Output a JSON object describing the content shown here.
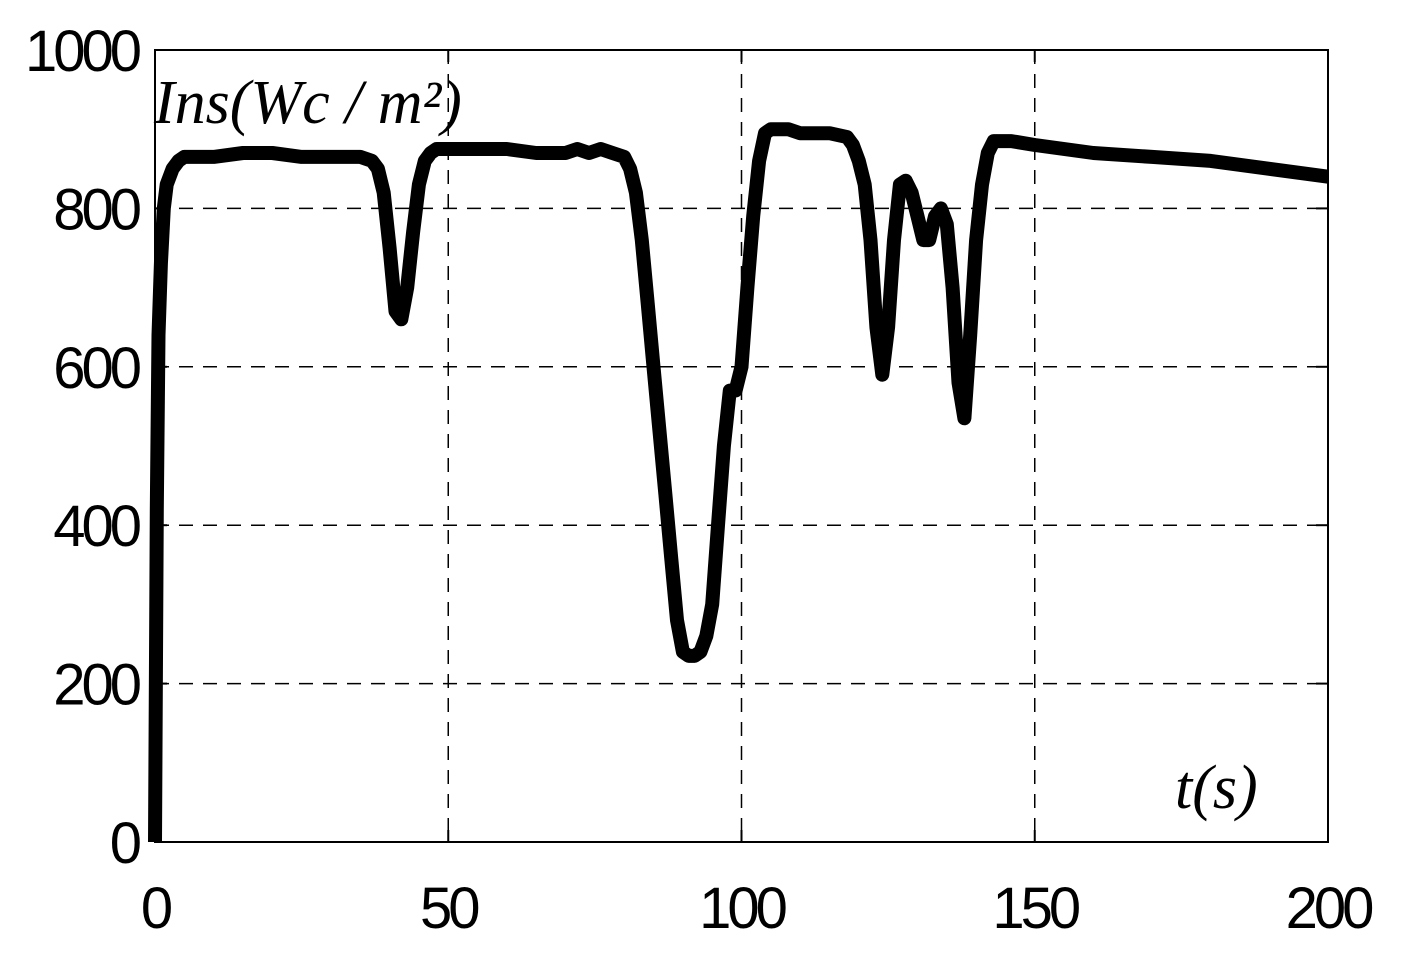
{
  "chart_data": {
    "type": "line",
    "title": "",
    "ylabel": "Ins(Wc / m²)",
    "xlabel": "t(s)",
    "xlim": [
      0,
      200
    ],
    "ylim": [
      0,
      1000
    ],
    "xticks": [
      0,
      50,
      100,
      150,
      200
    ],
    "yticks": [
      0,
      200,
      400,
      600,
      800,
      1000
    ],
    "grid": true,
    "line_color": "#000000",
    "series": [
      {
        "x": [
          0,
          0.3,
          0.6,
          1,
          1.5,
          2,
          3,
          4,
          5,
          8,
          10,
          15,
          20,
          25,
          30,
          35,
          37,
          38,
          39,
          40,
          41,
          42,
          43,
          44,
          45,
          46,
          47,
          48,
          50,
          55,
          60,
          65,
          70,
          72,
          74,
          76,
          78,
          80,
          81,
          82,
          83,
          84,
          85,
          86,
          87,
          88,
          89,
          90,
          91,
          92,
          93,
          94,
          95,
          96,
          97,
          98,
          99,
          100,
          101,
          102,
          103,
          104,
          105,
          108,
          110,
          115,
          118,
          119,
          120,
          121,
          122,
          123,
          124,
          125,
          126,
          127,
          128,
          129,
          130,
          131,
          132,
          133,
          134,
          135,
          136,
          137,
          138,
          139,
          140,
          141,
          142,
          143,
          144,
          146,
          150,
          155,
          160,
          170,
          180,
          190,
          200
        ],
        "y": [
          0,
          420,
          640,
          730,
          800,
          830,
          850,
          860,
          865,
          865,
          865,
          870,
          870,
          865,
          865,
          865,
          860,
          850,
          820,
          750,
          670,
          660,
          700,
          770,
          830,
          860,
          870,
          875,
          875,
          875,
          875,
          870,
          870,
          875,
          870,
          875,
          870,
          865,
          850,
          820,
          760,
          680,
          600,
          520,
          440,
          360,
          280,
          240,
          235,
          235,
          240,
          260,
          300,
          400,
          500,
          570,
          570,
          600,
          700,
          790,
          860,
          895,
          900,
          900,
          895,
          895,
          890,
          880,
          860,
          830,
          760,
          650,
          590,
          650,
          760,
          830,
          835,
          820,
          790,
          760,
          760,
          790,
          800,
          780,
          700,
          580,
          535,
          640,
          760,
          830,
          870,
          885,
          885,
          885,
          880,
          875,
          870,
          865,
          860,
          850,
          840
        ]
      }
    ]
  }
}
